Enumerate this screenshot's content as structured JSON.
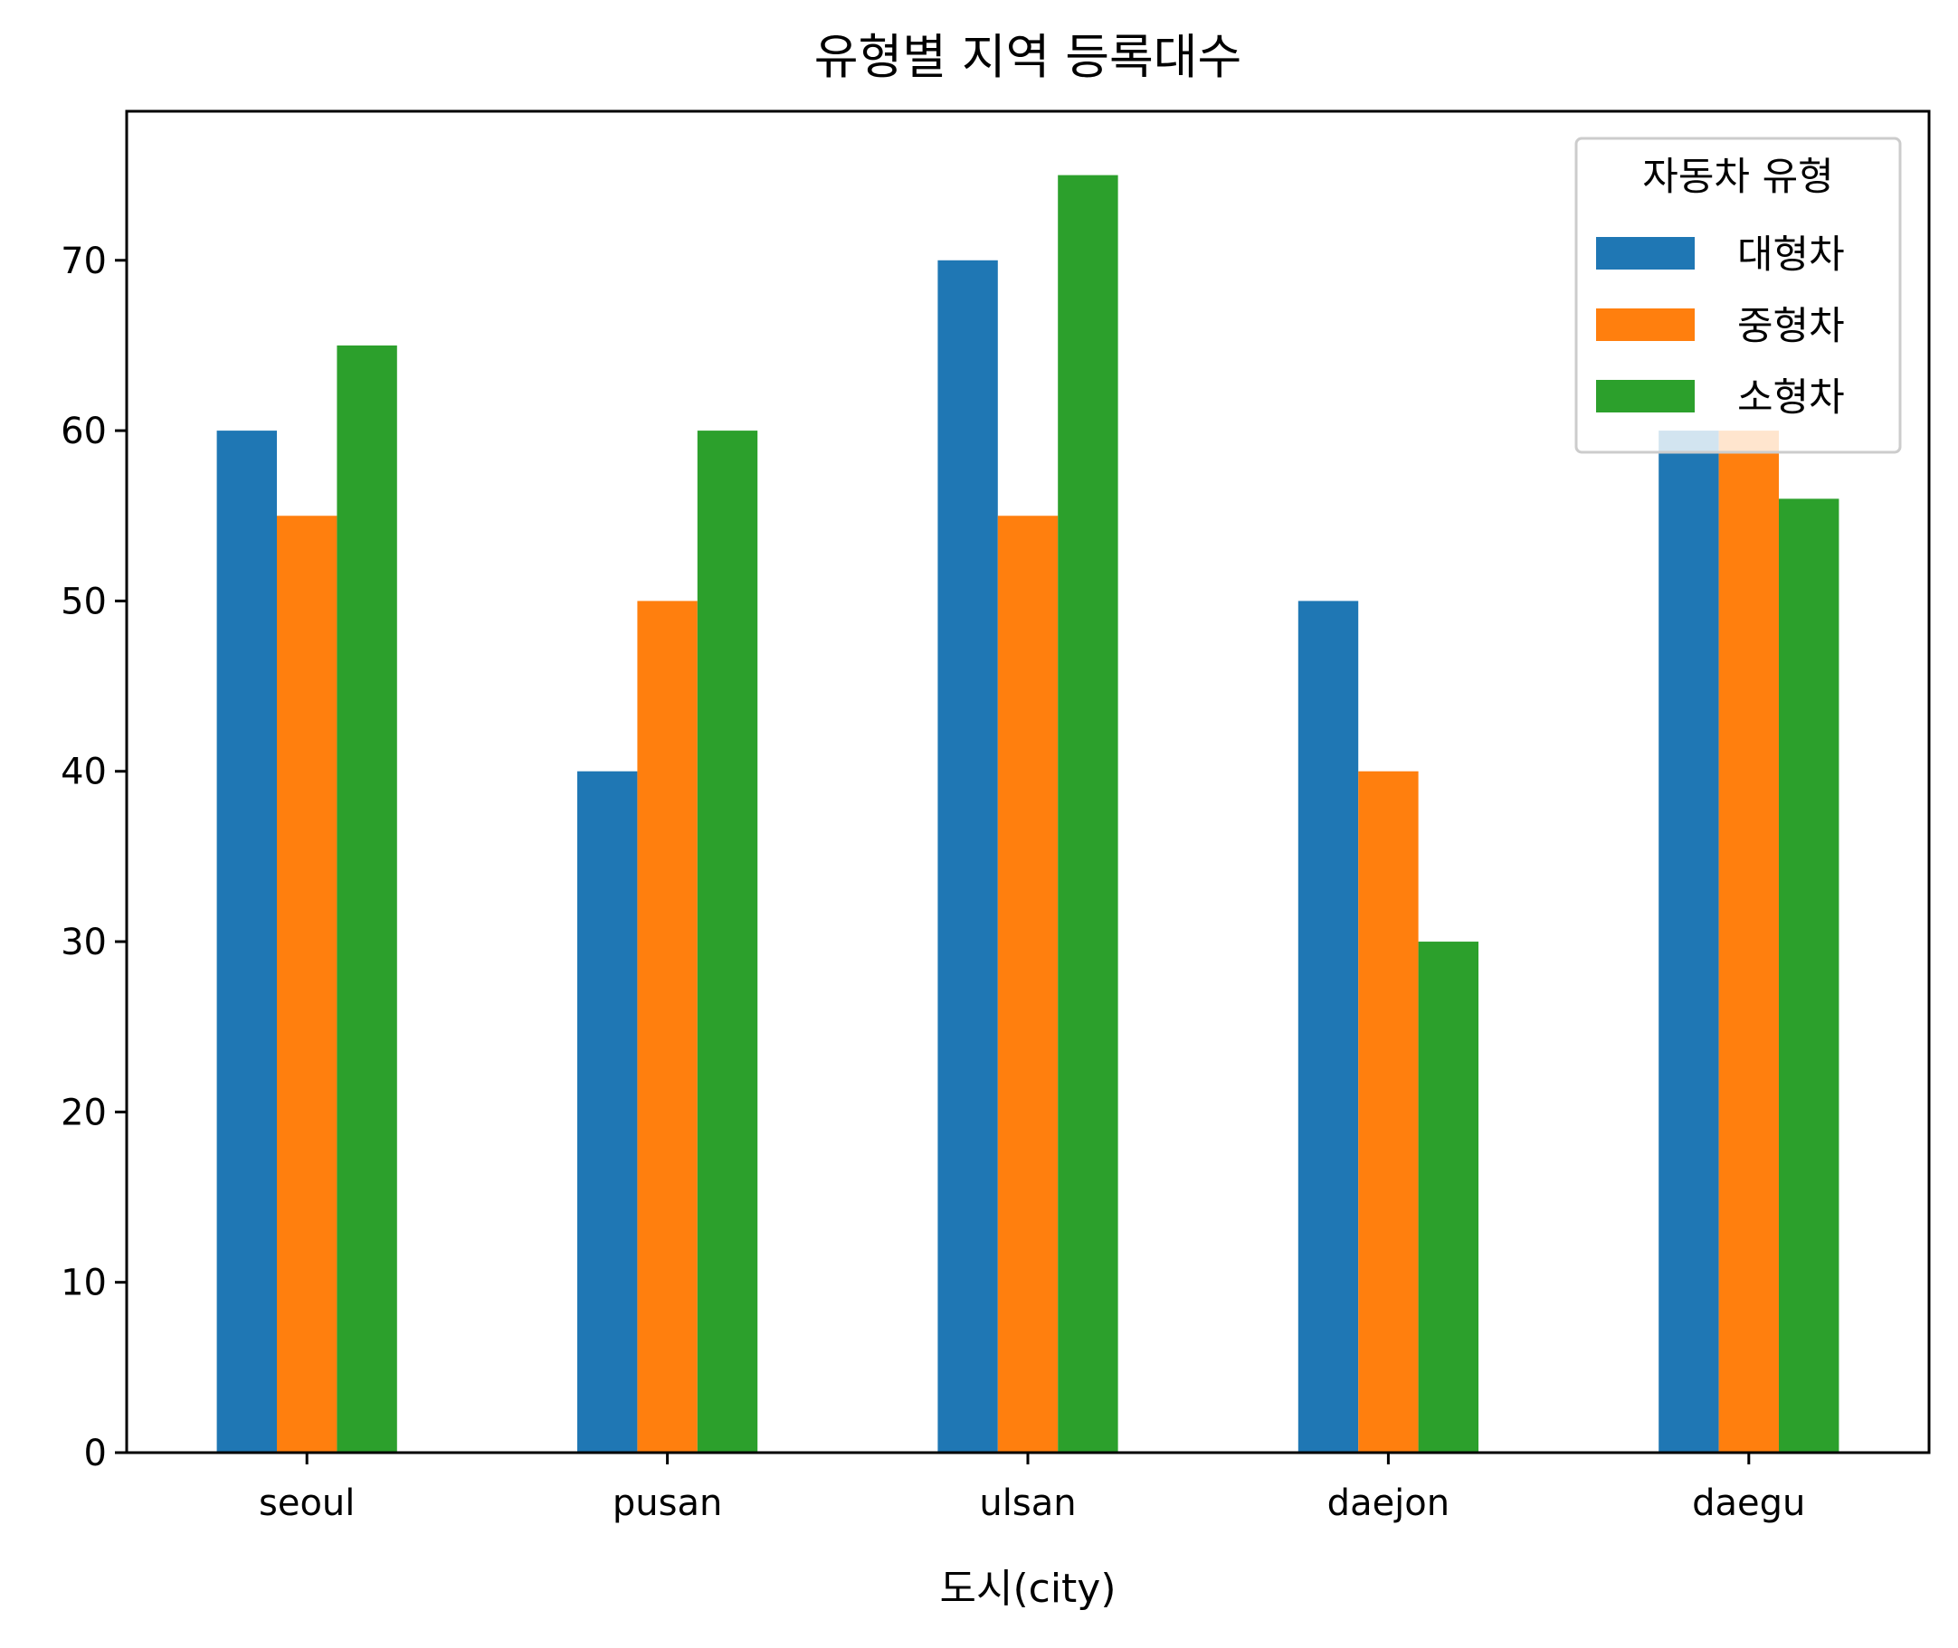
{
  "chart_data": {
    "type": "bar",
    "title": "유형별 지역 등록대수",
    "xlabel": "도시(city)",
    "ylabel": "",
    "categories": [
      "seoul",
      "pusan",
      "ulsan",
      "daejon",
      "daegu"
    ],
    "series": [
      {
        "name": "대형차",
        "color": "#1f77b4",
        "values": [
          60,
          40,
          70,
          50,
          60
        ]
      },
      {
        "name": "중형차",
        "color": "#ff7f0e",
        "values": [
          55,
          50,
          55,
          40,
          60
        ]
      },
      {
        "name": "소형차",
        "color": "#2ca02c",
        "values": [
          65,
          60,
          75,
          30,
          56
        ]
      }
    ],
    "ylim": [
      0,
      78.75
    ],
    "yticks": [
      0,
      10,
      20,
      30,
      40,
      50,
      60,
      70
    ],
    "grid": false,
    "legend": {
      "title": "자동차 유형",
      "position": "top-right"
    }
  }
}
